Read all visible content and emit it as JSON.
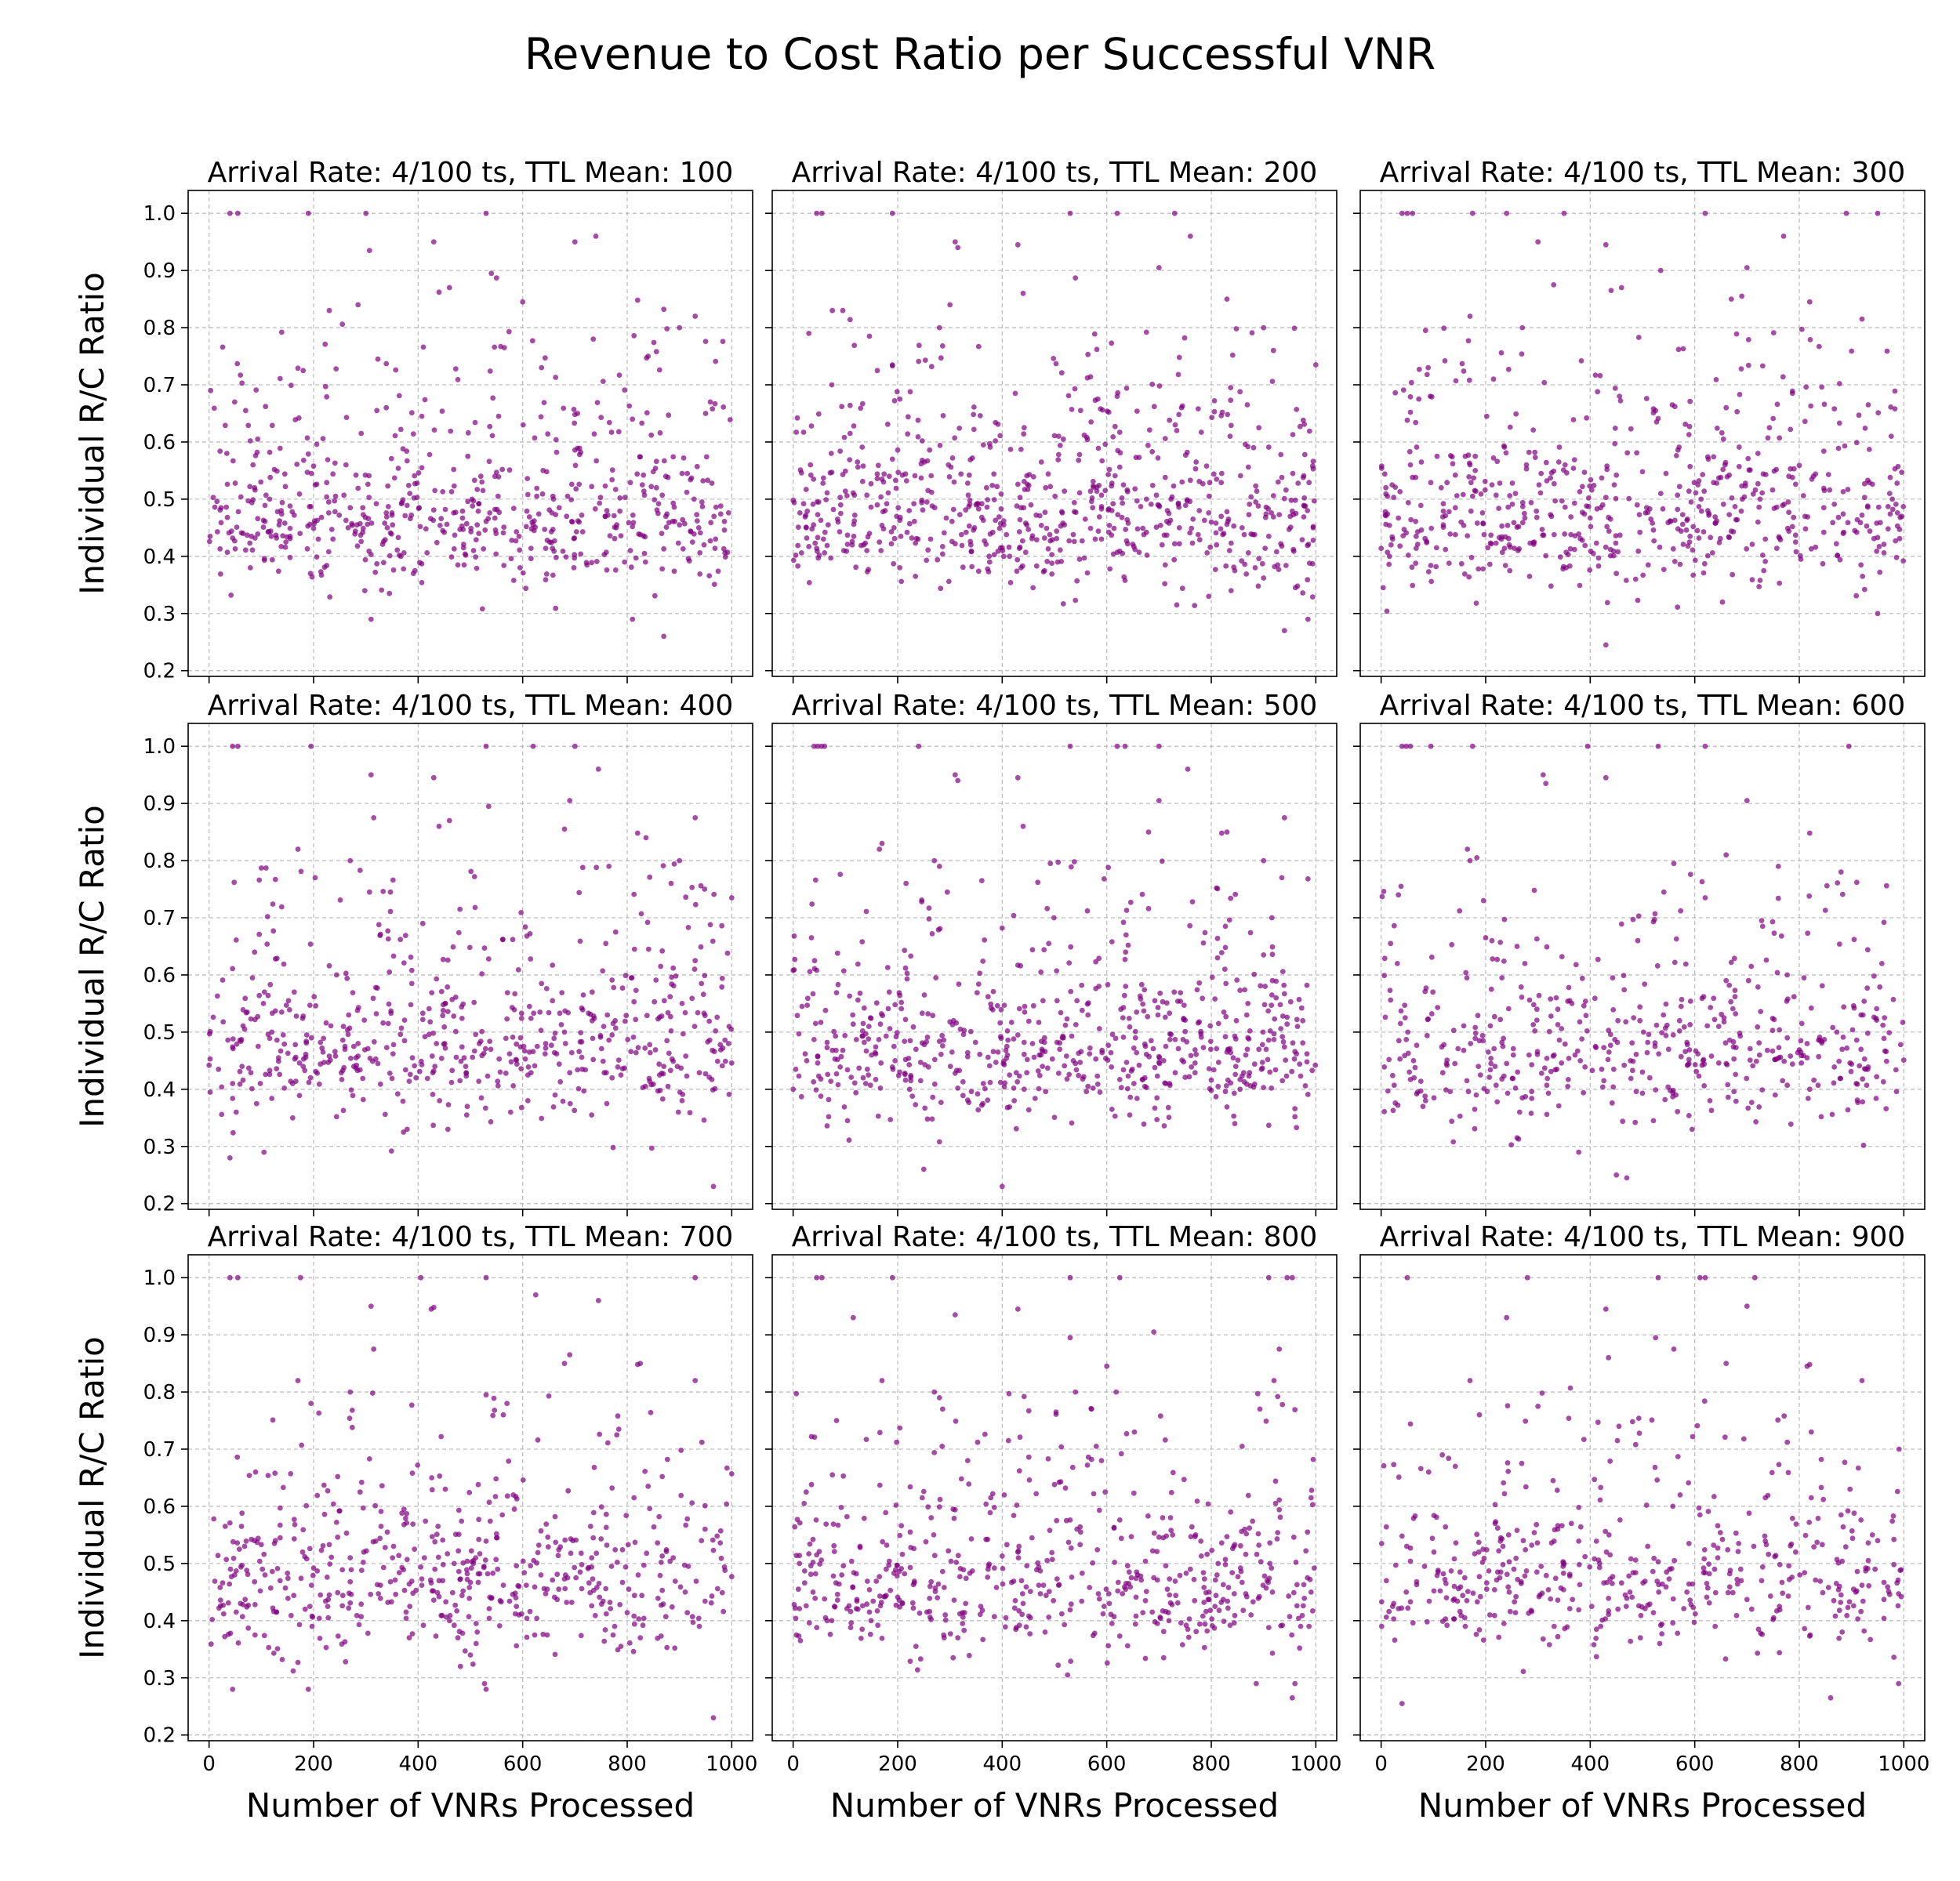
{
  "figure": {
    "suptitle": "Revenue to Cost Ratio per Successful VNR",
    "xlabel": "Number of VNRs Processed",
    "ylabel": "Individual R/C Ratio",
    "point_color": "#800080"
  },
  "chart_data": [
    {
      "type": "scatter",
      "title": "Arrival Rate: 4/100 ts, TTL Mean: 100",
      "xlabel": "Number of VNRs Processed",
      "ylabel": "Individual R/C Ratio",
      "xlim": [
        -40,
        1040
      ],
      "ylim": [
        0.19,
        1.04
      ],
      "xticks": [
        0,
        200,
        400,
        600,
        800,
        1000
      ],
      "yticks": [
        0.2,
        0.3,
        0.4,
        0.5,
        0.6,
        0.7,
        0.8,
        0.9,
        1.0
      ],
      "grid": true,
      "n_points": 620,
      "seed": 101,
      "outliers": [
        [
          40,
          1.0
        ],
        [
          55,
          1.0
        ],
        [
          190,
          1.0
        ],
        [
          300,
          1.0
        ],
        [
          307,
          0.935
        ],
        [
          530,
          1.0
        ],
        [
          540,
          0.895
        ],
        [
          550,
          0.887
        ],
        [
          700,
          0.95
        ],
        [
          740,
          0.96
        ],
        [
          430,
          0.95
        ],
        [
          440,
          0.862
        ],
        [
          460,
          0.87
        ],
        [
          285,
          0.84
        ],
        [
          230,
          0.83
        ],
        [
          255,
          0.806
        ],
        [
          600,
          0.845
        ],
        [
          820,
          0.848
        ],
        [
          900,
          0.8
        ],
        [
          930,
          0.82
        ],
        [
          950,
          0.776
        ],
        [
          870,
          0.26
        ],
        [
          810,
          0.29
        ],
        [
          310,
          0.29
        ]
      ]
    },
    {
      "type": "scatter",
      "title": "Arrival Rate: 4/100 ts, TTL Mean: 200",
      "xlabel": "Number of VNRs Processed",
      "ylabel": "Individual R/C Ratio",
      "xlim": [
        -40,
        1040
      ],
      "ylim": [
        0.19,
        1.04
      ],
      "xticks": [
        0,
        200,
        400,
        600,
        800,
        1000
      ],
      "yticks": [
        0.2,
        0.3,
        0.4,
        0.5,
        0.6,
        0.7,
        0.8,
        0.9,
        1.0
      ],
      "grid": true,
      "n_points": 700,
      "seed": 202,
      "outliers": [
        [
          45,
          1.0
        ],
        [
          55,
          1.0
        ],
        [
          190,
          1.0
        ],
        [
          530,
          1.0
        ],
        [
          620,
          1.0
        ],
        [
          730,
          1.0
        ],
        [
          310,
          0.95
        ],
        [
          315,
          0.94
        ],
        [
          430,
          0.945
        ],
        [
          540,
          0.887
        ],
        [
          700,
          0.905
        ],
        [
          760,
          0.96
        ],
        [
          440,
          0.86
        ],
        [
          75,
          0.83
        ],
        [
          95,
          0.83
        ],
        [
          280,
          0.8
        ],
        [
          300,
          0.84
        ],
        [
          830,
          0.85
        ],
        [
          900,
          0.8
        ],
        [
          1000,
          0.735
        ],
        [
          940,
          0.27
        ],
        [
          985,
          0.29
        ]
      ]
    },
    {
      "type": "scatter",
      "title": "Arrival Rate: 4/100 ts, TTL Mean: 300",
      "xlabel": "Number of VNRs Processed",
      "ylabel": "Individual R/C Ratio",
      "xlim": [
        -40,
        1040
      ],
      "ylim": [
        0.19,
        1.04
      ],
      "xticks": [
        0,
        200,
        400,
        600,
        800,
        1000
      ],
      "yticks": [
        0.2,
        0.3,
        0.4,
        0.5,
        0.6,
        0.7,
        0.8,
        0.9,
        1.0
      ],
      "grid": true,
      "n_points": 610,
      "seed": 303,
      "outliers": [
        [
          40,
          1.0
        ],
        [
          50,
          1.0
        ],
        [
          60,
          1.0
        ],
        [
          175,
          1.0
        ],
        [
          240,
          1.0
        ],
        [
          350,
          1.0
        ],
        [
          620,
          1.0
        ],
        [
          890,
          1.0
        ],
        [
          950,
          1.0
        ],
        [
          300,
          0.95
        ],
        [
          430,
          0.945
        ],
        [
          535,
          0.9
        ],
        [
          700,
          0.905
        ],
        [
          770,
          0.96
        ],
        [
          330,
          0.875
        ],
        [
          440,
          0.865
        ],
        [
          460,
          0.87
        ],
        [
          170,
          0.82
        ],
        [
          270,
          0.8
        ],
        [
          670,
          0.85
        ],
        [
          690,
          0.855
        ],
        [
          820,
          0.845
        ],
        [
          920,
          0.815
        ],
        [
          430,
          0.245
        ],
        [
          950,
          0.3
        ]
      ]
    },
    {
      "type": "scatter",
      "title": "Arrival Rate: 4/100 ts, TTL Mean: 400",
      "xlabel": "Number of VNRs Processed",
      "ylabel": "Individual R/C Ratio",
      "xlim": [
        -40,
        1040
      ],
      "ylim": [
        0.19,
        1.04
      ],
      "xticks": [
        0,
        200,
        400,
        600,
        800,
        1000
      ],
      "yticks": [
        0.2,
        0.3,
        0.4,
        0.5,
        0.6,
        0.7,
        0.8,
        0.9,
        1.0
      ],
      "grid": true,
      "n_points": 580,
      "seed": 404,
      "outliers": [
        [
          45,
          1.0
        ],
        [
          55,
          1.0
        ],
        [
          195,
          1.0
        ],
        [
          530,
          1.0
        ],
        [
          620,
          1.0
        ],
        [
          700,
          1.0
        ],
        [
          310,
          0.95
        ],
        [
          430,
          0.945
        ],
        [
          535,
          0.895
        ],
        [
          690,
          0.905
        ],
        [
          745,
          0.96
        ],
        [
          315,
          0.875
        ],
        [
          440,
          0.86
        ],
        [
          460,
          0.87
        ],
        [
          680,
          0.855
        ],
        [
          170,
          0.82
        ],
        [
          270,
          0.8
        ],
        [
          820,
          0.848
        ],
        [
          900,
          0.8
        ],
        [
          930,
          0.875
        ],
        [
          1000,
          0.735
        ],
        [
          965,
          0.23
        ],
        [
          40,
          0.28
        ]
      ]
    },
    {
      "type": "scatter",
      "title": "Arrival Rate: 4/100 ts, TTL Mean: 500",
      "xlabel": "Number of VNRs Processed",
      "ylabel": "Individual R/C Ratio",
      "xlim": [
        -40,
        1040
      ],
      "ylim": [
        0.19,
        1.04
      ],
      "xticks": [
        0,
        200,
        400,
        600,
        800,
        1000
      ],
      "yticks": [
        0.2,
        0.3,
        0.4,
        0.5,
        0.6,
        0.7,
        0.8,
        0.9,
        1.0
      ],
      "grid": true,
      "n_points": 640,
      "seed": 505,
      "outliers": [
        [
          40,
          1.0
        ],
        [
          47,
          1.0
        ],
        [
          54,
          1.0
        ],
        [
          60,
          1.0
        ],
        [
          240,
          1.0
        ],
        [
          530,
          1.0
        ],
        [
          620,
          1.0
        ],
        [
          635,
          1.0
        ],
        [
          700,
          1.0
        ],
        [
          310,
          0.95
        ],
        [
          315,
          0.94
        ],
        [
          430,
          0.945
        ],
        [
          755,
          0.96
        ],
        [
          700,
          0.905
        ],
        [
          440,
          0.86
        ],
        [
          680,
          0.85
        ],
        [
          165,
          0.82
        ],
        [
          170,
          0.83
        ],
        [
          270,
          0.8
        ],
        [
          280,
          0.79
        ],
        [
          820,
          0.848
        ],
        [
          830,
          0.85
        ],
        [
          900,
          0.8
        ],
        [
          940,
          0.875
        ],
        [
          400,
          0.23
        ],
        [
          250,
          0.26
        ]
      ]
    },
    {
      "type": "scatter",
      "title": "Arrival Rate: 4/100 ts, TTL Mean: 600",
      "xlabel": "Number of VNRs Processed",
      "ylabel": "Individual R/C Ratio",
      "xlim": [
        -40,
        1040
      ],
      "ylim": [
        0.19,
        1.04
      ],
      "xticks": [
        0,
        200,
        400,
        600,
        800,
        1000
      ],
      "yticks": [
        0.2,
        0.3,
        0.4,
        0.5,
        0.6,
        0.7,
        0.8,
        0.9,
        1.0
      ],
      "grid": true,
      "n_points": 500,
      "seed": 606,
      "outliers": [
        [
          40,
          1.0
        ],
        [
          48,
          1.0
        ],
        [
          56,
          1.0
        ],
        [
          95,
          1.0
        ],
        [
          175,
          1.0
        ],
        [
          395,
          1.0
        ],
        [
          530,
          1.0
        ],
        [
          620,
          1.0
        ],
        [
          895,
          1.0
        ],
        [
          310,
          0.95
        ],
        [
          315,
          0.935
        ],
        [
          430,
          0.945
        ],
        [
          700,
          0.905
        ],
        [
          165,
          0.82
        ],
        [
          170,
          0.8
        ],
        [
          560,
          0.795
        ],
        [
          660,
          0.81
        ],
        [
          760,
          0.79
        ],
        [
          820,
          0.848
        ],
        [
          880,
          0.78
        ],
        [
          450,
          0.25
        ],
        [
          470,
          0.245
        ]
      ]
    },
    {
      "type": "scatter",
      "title": "Arrival Rate: 4/100 ts, TTL Mean: 700",
      "xlabel": "Number of VNRs Processed",
      "ylabel": "Individual R/C Ratio",
      "xlim": [
        -40,
        1040
      ],
      "ylim": [
        0.19,
        1.04
      ],
      "xticks": [
        0,
        200,
        400,
        600,
        800,
        1000
      ],
      "yticks": [
        0.2,
        0.3,
        0.4,
        0.5,
        0.6,
        0.7,
        0.8,
        0.9,
        1.0
      ],
      "grid": true,
      "n_points": 540,
      "seed": 707,
      "outliers": [
        [
          40,
          1.0
        ],
        [
          55,
          1.0
        ],
        [
          175,
          1.0
        ],
        [
          405,
          1.0
        ],
        [
          530,
          1.0
        ],
        [
          930,
          1.0
        ],
        [
          310,
          0.95
        ],
        [
          425,
          0.945
        ],
        [
          430,
          0.948
        ],
        [
          625,
          0.97
        ],
        [
          745,
          0.96
        ],
        [
          315,
          0.875
        ],
        [
          680,
          0.85
        ],
        [
          690,
          0.865
        ],
        [
          170,
          0.82
        ],
        [
          195,
          0.78
        ],
        [
          270,
          0.8
        ],
        [
          530,
          0.795
        ],
        [
          570,
          0.78
        ],
        [
          820,
          0.848
        ],
        [
          825,
          0.85
        ],
        [
          930,
          0.82
        ],
        [
          965,
          0.23
        ],
        [
          45,
          0.28
        ],
        [
          190,
          0.28
        ],
        [
          530,
          0.28
        ]
      ]
    },
    {
      "type": "scatter",
      "title": "Arrival Rate: 4/100 ts, TTL Mean: 800",
      "xlabel": "Number of VNRs Processed",
      "ylabel": "Individual R/C Ratio",
      "xlim": [
        -40,
        1040
      ],
      "ylim": [
        0.19,
        1.04
      ],
      "xticks": [
        0,
        200,
        400,
        600,
        800,
        1000
      ],
      "yticks": [
        0.2,
        0.3,
        0.4,
        0.5,
        0.6,
        0.7,
        0.8,
        0.9,
        1.0
      ],
      "grid": true,
      "n_points": 560,
      "seed": 808,
      "outliers": [
        [
          45,
          1.0
        ],
        [
          55,
          1.0
        ],
        [
          190,
          1.0
        ],
        [
          530,
          1.0
        ],
        [
          625,
          1.0
        ],
        [
          910,
          1.0
        ],
        [
          945,
          1.0
        ],
        [
          955,
          1.0
        ],
        [
          310,
          0.935
        ],
        [
          430,
          0.945
        ],
        [
          530,
          0.895
        ],
        [
          115,
          0.93
        ],
        [
          690,
          0.905
        ],
        [
          600,
          0.845
        ],
        [
          540,
          0.8
        ],
        [
          270,
          0.8
        ],
        [
          280,
          0.79
        ],
        [
          170,
          0.82
        ],
        [
          930,
          0.875
        ],
        [
          920,
          0.82
        ],
        [
          955,
          0.265
        ],
        [
          960,
          0.29
        ],
        [
          525,
          0.305
        ]
      ]
    },
    {
      "type": "scatter",
      "title": "Arrival Rate: 4/100 ts, TTL Mean: 900",
      "xlabel": "Number of VNRs Processed",
      "ylabel": "Individual R/C Ratio",
      "xlim": [
        -40,
        1040
      ],
      "ylim": [
        0.19,
        1.04
      ],
      "xticks": [
        0,
        200,
        400,
        600,
        800,
        1000
      ],
      "yticks": [
        0.2,
        0.3,
        0.4,
        0.5,
        0.6,
        0.7,
        0.8,
        0.9,
        1.0
      ],
      "grid": true,
      "n_points": 470,
      "seed": 909,
      "outliers": [
        [
          50,
          1.0
        ],
        [
          280,
          1.0
        ],
        [
          530,
          1.0
        ],
        [
          610,
          1.0
        ],
        [
          620,
          1.0
        ],
        [
          715,
          1.0
        ],
        [
          240,
          0.93
        ],
        [
          430,
          0.945
        ],
        [
          525,
          0.895
        ],
        [
          700,
          0.95
        ],
        [
          435,
          0.86
        ],
        [
          560,
          0.875
        ],
        [
          660,
          0.85
        ],
        [
          170,
          0.82
        ],
        [
          300,
          0.775
        ],
        [
          815,
          0.845
        ],
        [
          820,
          0.848
        ],
        [
          920,
          0.82
        ],
        [
          40,
          0.255
        ],
        [
          860,
          0.265
        ],
        [
          990,
          0.29
        ]
      ]
    }
  ]
}
